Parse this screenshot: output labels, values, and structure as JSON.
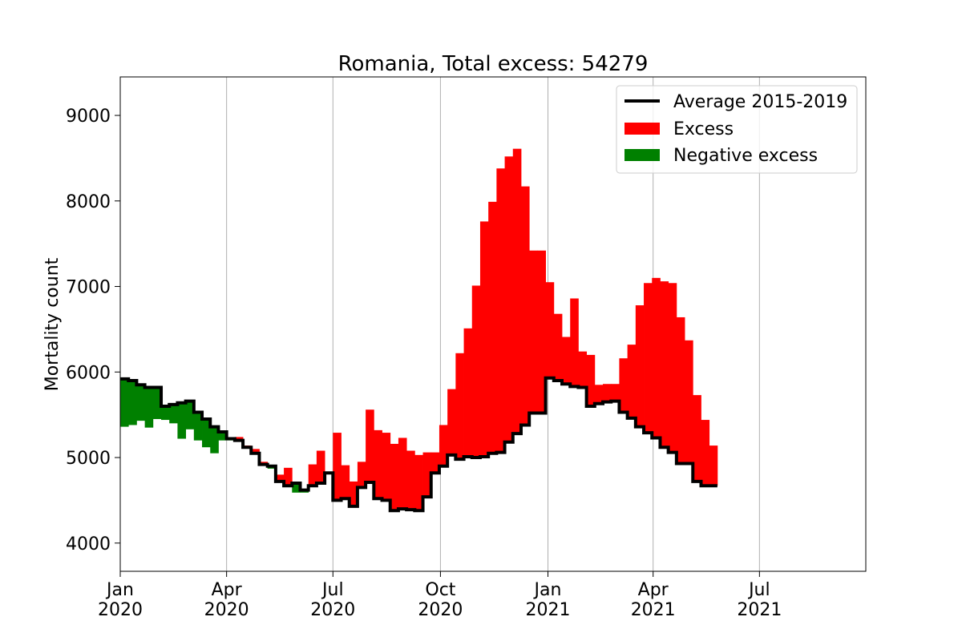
{
  "chart_data": {
    "type": "area",
    "title": "Romania, Total excess: 54279",
    "xlabel": "",
    "ylabel": "Mortality count",
    "ylim": [
      3670,
      9450
    ],
    "xlim": [
      "2020-01-01",
      "2021-09-30"
    ],
    "yticks": [
      4000,
      5000,
      6000,
      7000,
      8000,
      9000
    ],
    "xticks": [
      {
        "date": "2020-01-01",
        "label_month": "Jan",
        "label_year": "2020"
      },
      {
        "date": "2020-04-01",
        "label_month": "Apr",
        "label_year": "2020"
      },
      {
        "date": "2020-07-01",
        "label_month": "Jul",
        "label_year": "2020"
      },
      {
        "date": "2020-10-01",
        "label_month": "Oct",
        "label_year": "2020"
      },
      {
        "date": "2021-01-01",
        "label_month": "Jan",
        "label_year": "2021"
      },
      {
        "date": "2021-04-01",
        "label_month": "Apr",
        "label_year": "2021"
      },
      {
        "date": "2021-07-01",
        "label_month": "Jul",
        "label_year": "2021"
      }
    ],
    "grid": "vertical at x ticks",
    "legend_position": "top-right",
    "legend": [
      {
        "label": "Average 2015-2019",
        "kind": "line",
        "color": "#000000"
      },
      {
        "label": "Excess",
        "kind": "patch",
        "color": "#ff0000"
      },
      {
        "label": "Negative excess",
        "kind": "patch",
        "color": "#008000"
      }
    ],
    "week_start": [
      "2020-01-01",
      "2020-01-08",
      "2020-01-15",
      "2020-01-22",
      "2020-01-29",
      "2020-02-05",
      "2020-02-12",
      "2020-02-19",
      "2020-02-26",
      "2020-03-04",
      "2020-03-11",
      "2020-03-18",
      "2020-03-25",
      "2020-04-01",
      "2020-04-08",
      "2020-04-15",
      "2020-04-22",
      "2020-04-29",
      "2020-05-06",
      "2020-05-13",
      "2020-05-20",
      "2020-05-27",
      "2020-06-03",
      "2020-06-10",
      "2020-06-17",
      "2020-06-24",
      "2020-07-01",
      "2020-07-08",
      "2020-07-15",
      "2020-07-22",
      "2020-07-29",
      "2020-08-05",
      "2020-08-12",
      "2020-08-19",
      "2020-08-26",
      "2020-09-02",
      "2020-09-09",
      "2020-09-16",
      "2020-09-23",
      "2020-09-30",
      "2020-10-07",
      "2020-10-14",
      "2020-10-21",
      "2020-10-28",
      "2020-11-04",
      "2020-11-11",
      "2020-11-18",
      "2020-11-25",
      "2020-12-02",
      "2020-12-09",
      "2020-12-16",
      "2020-12-23",
      "2020-12-30",
      "2021-01-06",
      "2021-01-13",
      "2021-01-20",
      "2021-01-27",
      "2021-02-03",
      "2021-02-10",
      "2021-02-17",
      "2021-02-24",
      "2021-03-03",
      "2021-03-10",
      "2021-03-17",
      "2021-03-24",
      "2021-03-31",
      "2021-04-07",
      "2021-04-14",
      "2021-04-21",
      "2021-04-28",
      "2021-05-05",
      "2021-05-12",
      "2021-05-19"
    ],
    "series": [
      {
        "name": "Average 2015-2019",
        "color": "#000000",
        "values": [
          5920,
          5900,
          5850,
          5820,
          5820,
          5600,
          5620,
          5640,
          5660,
          5530,
          5450,
          5360,
          5300,
          5220,
          5200,
          5120,
          5050,
          4920,
          4900,
          4720,
          4670,
          4700,
          4620,
          4670,
          4700,
          4820,
          4500,
          4520,
          4430,
          4650,
          4710,
          4520,
          4500,
          4380,
          4400,
          4390,
          4380,
          4540,
          4820,
          4900,
          5030,
          4980,
          5010,
          5000,
          5010,
          5050,
          5060,
          5180,
          5280,
          5380,
          5520,
          5520,
          5930,
          5900,
          5860,
          5830,
          5820,
          5600,
          5630,
          5650,
          5660,
          5530,
          5460,
          5360,
          5290,
          5230,
          5120,
          5060,
          4930,
          4930,
          4720,
          4670,
          4670
        ]
      },
      {
        "name": "Excess",
        "color": "#ff0000",
        "values": [
          5360,
          5380,
          5430,
          5350,
          5450,
          5440,
          5400,
          5220,
          5330,
          5200,
          5120,
          5050,
          5200,
          5200,
          5240,
          5140,
          5100,
          4950,
          4870,
          4800,
          4880,
          4590,
          4590,
          4920,
          5080,
          4820,
          5290,
          4910,
          4720,
          4950,
          5560,
          5320,
          5290,
          5160,
          5230,
          5080,
          5030,
          5060,
          5060,
          5380,
          5800,
          6220,
          6510,
          7010,
          7760,
          7990,
          8380,
          8520,
          8610,
          8170,
          7420,
          7420,
          7050,
          6680,
          6410,
          6860,
          6240,
          6200,
          5850,
          5860,
          5860,
          6160,
          6320,
          6780,
          7040,
          7100,
          7060,
          7040,
          6640,
          6370,
          5730,
          5440,
          5140
        ]
      }
    ]
  }
}
